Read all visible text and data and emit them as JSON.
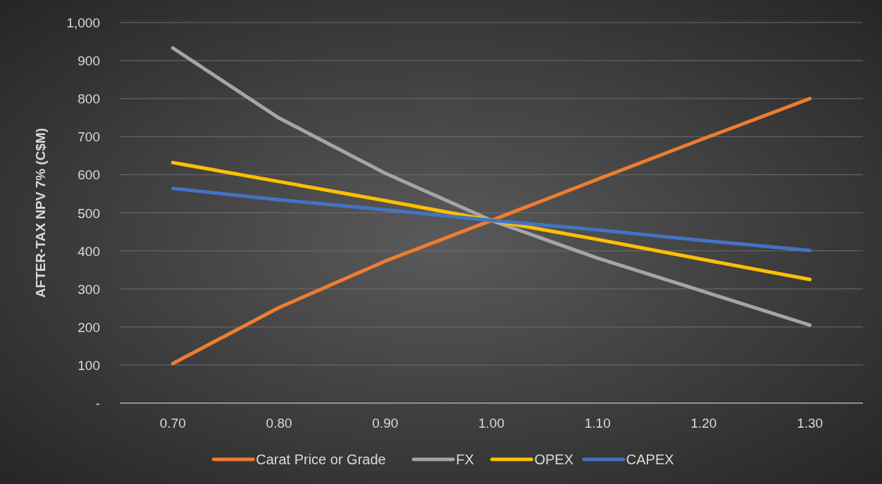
{
  "chart_data": {
    "type": "line",
    "ylabel": "AFTER-TAX NPV 7% (C$M)",
    "categories": [
      "0.70",
      "0.80",
      "0.90",
      "1.00",
      "1.10",
      "1.20",
      "1.30"
    ],
    "series": [
      {
        "name": "Carat Price or Grade",
        "color": "#ed7d31",
        "values": [
          104,
          251,
          373,
          480,
          588,
          695,
          800
        ]
      },
      {
        "name": "FX",
        "color": "#a5a5a5",
        "values": [
          933,
          749,
          604,
          480,
          381,
          293,
          205
        ]
      },
      {
        "name": "OPEX",
        "color": "#ffc000",
        "values": [
          632,
          582,
          532,
          480,
          430,
          377,
          325
        ]
      },
      {
        "name": "CAPEX",
        "color": "#4472c4",
        "values": [
          564,
          534,
          508,
          480,
          455,
          427,
          401
        ]
      }
    ],
    "ylim": [
      0,
      1000
    ],
    "yticks": [
      {
        "value": 0,
        "label": "-"
      },
      100,
      200,
      300,
      400,
      500,
      600,
      700,
      800,
      900,
      {
        "value": 1000,
        "label": "1,000"
      }
    ],
    "grid": "y",
    "legend": "bottom",
    "marker": "none",
    "line_style": "solid"
  }
}
